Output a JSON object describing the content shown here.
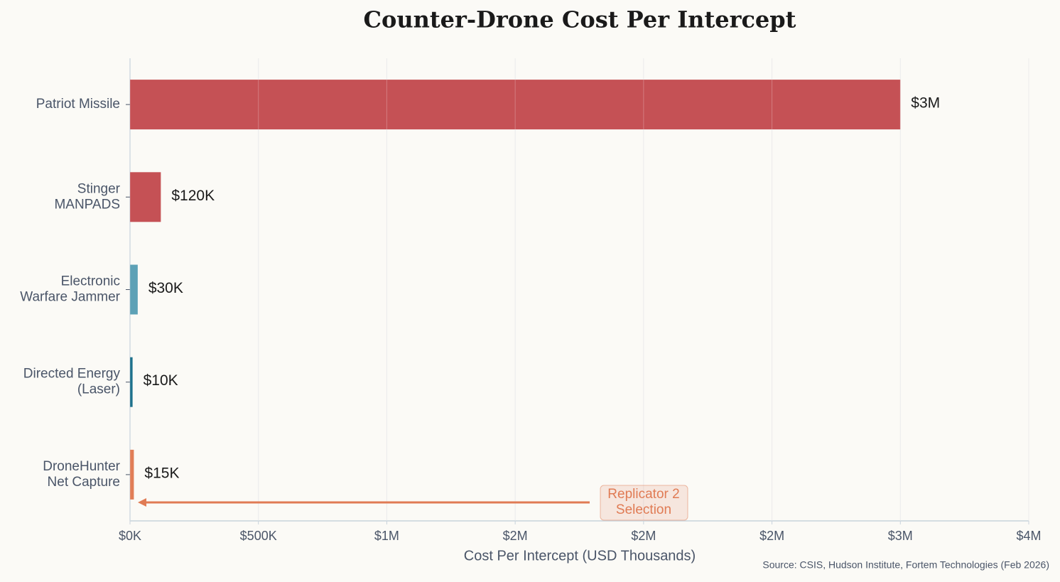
{
  "chart_data": {
    "type": "barh",
    "title": "Counter-Drone Cost Per Intercept",
    "x_label": "Cost Per Intercept (USD Thousands)",
    "source": "Source: CSIS, Hudson Institute, Fortem Technologies (Feb 2026)",
    "categories": [
      "Patriot Missile",
      "Stinger\nMANPADS",
      "Electronic\nWarfare Jammer",
      "Directed Energy\n(Laser)",
      "DroneHunter\nNet Capture"
    ],
    "values": [
      3000,
      120,
      30,
      10,
      15
    ],
    "value_labels": [
      "$3M",
      "$120K",
      "$30K",
      "$10K",
      "$15K"
    ],
    "colors": [
      "#c44e52",
      "#c44e52",
      "#5a9fb5",
      "#1a6e8a",
      "#e07b54"
    ],
    "xlim": [
      0,
      3500
    ],
    "xticks": [
      {
        "value": 0,
        "label": "$0K"
      },
      {
        "value": 500,
        "label": "$500K"
      },
      {
        "value": 1000,
        "label": "$1M"
      },
      {
        "value": 1500,
        "label": "$2M"
      },
      {
        "value": 2000,
        "label": "$2M"
      },
      {
        "value": 2500,
        "label": "$2M"
      },
      {
        "value": 3000,
        "label": "$3M"
      },
      {
        "value": 3500,
        "label": "$4M"
      }
    ],
    "grid": true,
    "annotation": {
      "text": "Replicator 2\nSelection",
      "color": "#e07b54"
    }
  }
}
